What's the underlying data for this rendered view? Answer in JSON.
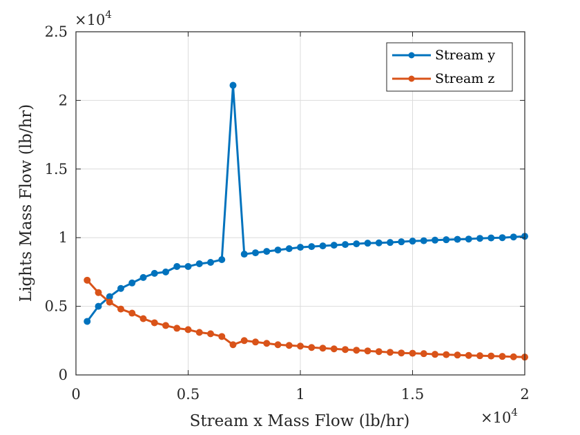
{
  "chart_data": {
    "type": "line",
    "xlabel": "Stream x Mass Flow (lb/hr)",
    "ylabel": "Lights Mass Flow (lb/hr)",
    "x_exponent_base": "×10",
    "x_exponent_power": "4",
    "y_exponent_base": "×10",
    "y_exponent_power": "4",
    "xlim": [
      0,
      2
    ],
    "ylim": [
      0,
      2.5
    ],
    "x_ticks": [
      0,
      0.5,
      1,
      1.5,
      2
    ],
    "x_tick_labels": [
      "0",
      "0.5",
      "1",
      "1.5",
      "2"
    ],
    "y_ticks": [
      0,
      0.5,
      1,
      1.5,
      2,
      2.5
    ],
    "y_tick_labels": [
      "0",
      "0.5",
      "1",
      "1.5",
      "2",
      "2.5"
    ],
    "grid": true,
    "legend_position": "top-right",
    "x": [
      0.05,
      0.1,
      0.15,
      0.2,
      0.25,
      0.3,
      0.35,
      0.4,
      0.45,
      0.5,
      0.55,
      0.6,
      0.65,
      0.7,
      0.75,
      0.8,
      0.85,
      0.9,
      0.95,
      1.0,
      1.05,
      1.1,
      1.15,
      1.2,
      1.25,
      1.3,
      1.35,
      1.4,
      1.45,
      1.5,
      1.55,
      1.6,
      1.65,
      1.7,
      1.75,
      1.8,
      1.85,
      1.9,
      1.95,
      2.0
    ],
    "series": [
      {
        "name": "Stream y",
        "color": "#0072BD",
        "values": [
          0.39,
          0.5,
          0.57,
          0.63,
          0.67,
          0.71,
          0.74,
          0.75,
          0.79,
          0.79,
          0.81,
          0.82,
          0.84,
          2.11,
          0.88,
          0.89,
          0.9,
          0.91,
          0.92,
          0.93,
          0.935,
          0.94,
          0.945,
          0.95,
          0.955,
          0.96,
          0.962,
          0.965,
          0.97,
          0.975,
          0.978,
          0.982,
          0.985,
          0.988,
          0.99,
          0.995,
          0.998,
          1.0,
          1.005,
          1.01
        ]
      },
      {
        "name": "Stream z",
        "color": "#D95319",
        "values": [
          0.69,
          0.6,
          0.53,
          0.48,
          0.45,
          0.41,
          0.38,
          0.36,
          0.34,
          0.33,
          0.31,
          0.3,
          0.28,
          0.22,
          0.25,
          0.24,
          0.23,
          0.22,
          0.215,
          0.21,
          0.2,
          0.195,
          0.19,
          0.185,
          0.18,
          0.175,
          0.17,
          0.165,
          0.16,
          0.158,
          0.155,
          0.15,
          0.148,
          0.145,
          0.142,
          0.14,
          0.138,
          0.135,
          0.132,
          0.13
        ]
      }
    ]
  }
}
